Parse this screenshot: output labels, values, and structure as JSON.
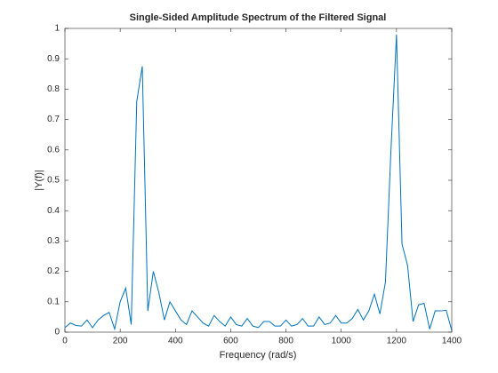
{
  "chart_data": {
    "type": "line",
    "title": "Single-Sided Amplitude Spectrum of the Filtered Signal",
    "xlabel": "Frequency (rad/s)",
    "ylabel": "|Y(f)|",
    "x": [
      0,
      20,
      40,
      60,
      80,
      100,
      120,
      140,
      160,
      180,
      200,
      220,
      240,
      260,
      280,
      300,
      320,
      340,
      360,
      380,
      400,
      420,
      440,
      460,
      480,
      500,
      520,
      540,
      560,
      580,
      600,
      620,
      640,
      660,
      680,
      700,
      720,
      740,
      760,
      780,
      800,
      820,
      840,
      860,
      880,
      900,
      920,
      940,
      960,
      980,
      1000,
      1020,
      1040,
      1060,
      1080,
      1100,
      1120,
      1140,
      1160,
      1180,
      1200,
      1220,
      1240,
      1260,
      1280,
      1300,
      1320,
      1340,
      1360,
      1380,
      1400
    ],
    "series": [
      {
        "color": "#0072bd",
        "values": [
          0.015,
          0.03,
          0.022,
          0.02,
          0.04,
          0.015,
          0.04,
          0.055,
          0.065,
          0.01,
          0.1,
          0.145,
          0.025,
          0.76,
          0.875,
          0.07,
          0.2,
          0.13,
          0.04,
          0.1,
          0.07,
          0.04,
          0.025,
          0.07,
          0.05,
          0.03,
          0.02,
          0.055,
          0.035,
          0.02,
          0.05,
          0.025,
          0.02,
          0.045,
          0.02,
          0.015,
          0.035,
          0.035,
          0.02,
          0.02,
          0.04,
          0.02,
          0.025,
          0.045,
          0.02,
          0.02,
          0.05,
          0.025,
          0.03,
          0.055,
          0.03,
          0.03,
          0.045,
          0.075,
          0.04,
          0.07,
          0.125,
          0.06,
          0.165,
          0.6,
          0.98,
          0.29,
          0.22,
          0.035,
          0.09,
          0.095,
          0.01,
          0.07,
          0.07,
          0.072,
          0.005
        ]
      }
    ],
    "xlim": [
      0,
      1400
    ],
    "xticks": [
      0,
      200,
      400,
      600,
      800,
      1000,
      1200,
      1400
    ],
    "ylim": [
      0,
      1
    ],
    "yticks": [
      0,
      0.1,
      0.2,
      0.3,
      0.4,
      0.5,
      0.6,
      0.7,
      0.8,
      0.9,
      1
    ],
    "grid": false
  }
}
